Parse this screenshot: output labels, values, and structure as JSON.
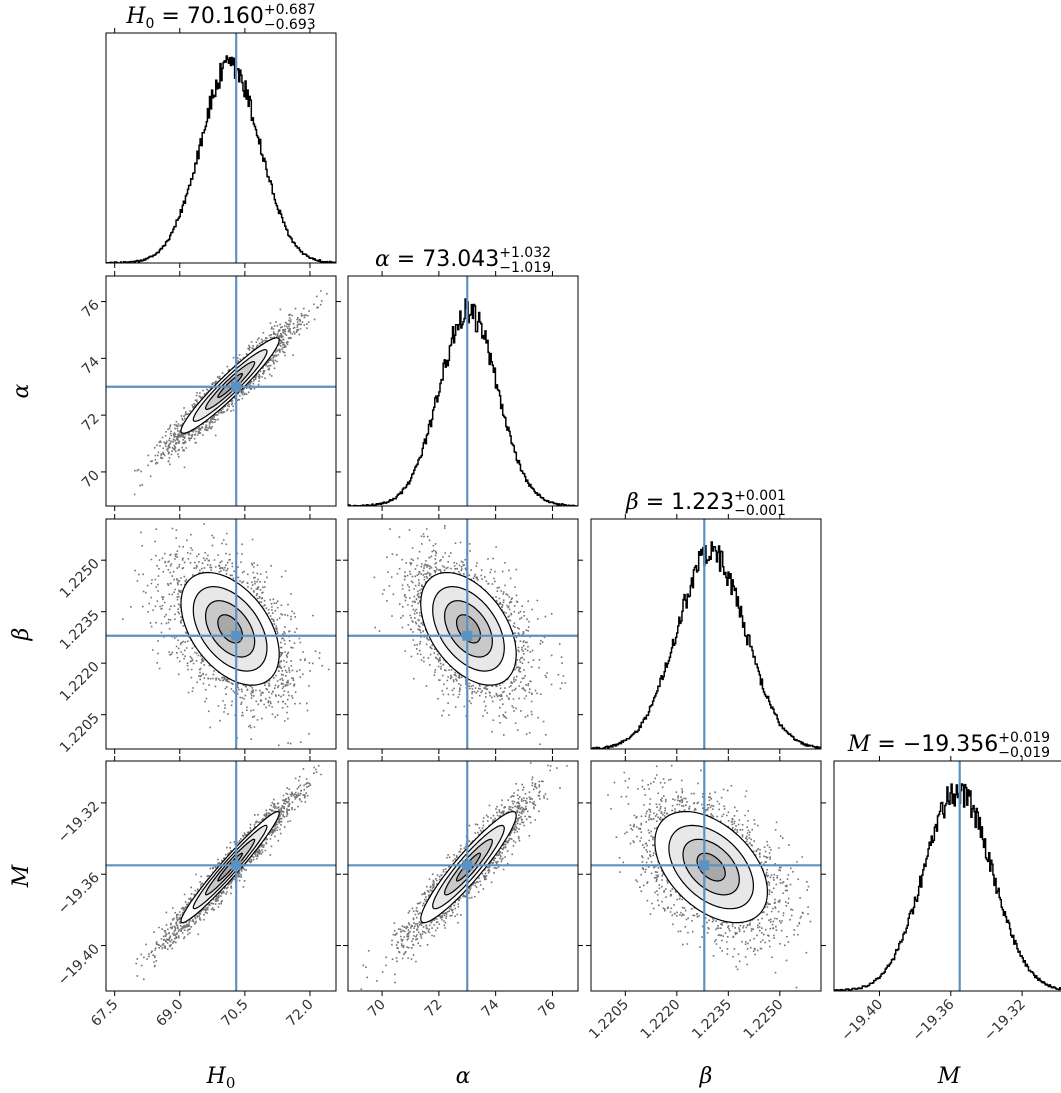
{
  "chart_data": {
    "type": "corner",
    "parameters": [
      {
        "key": "H0",
        "label": "H",
        "label_sub": "0",
        "median": 70.16,
        "err_plus": 0.687,
        "err_minus": 0.693,
        "title": {
          "lhs": "H",
          "lhs_sub": "0",
          "value": " = 70.160",
          "sup": "+0.687",
          "sub": "−0.693"
        },
        "range": [
          67.3,
          72.6
        ],
        "ticks": [
          67.5,
          69.0,
          70.5,
          72.0
        ],
        "tick_labels": [
          "67.5",
          "69.0",
          "70.5",
          "72.0"
        ]
      },
      {
        "key": "alpha",
        "label": "α",
        "label_sub": "",
        "median": 73.043,
        "err_plus": 1.032,
        "err_minus": 1.019,
        "title": {
          "lhs": "α",
          "lhs_sub": "",
          "value": " = 73.043",
          "sup": "+1.032",
          "sub": "−1.019"
        },
        "range": [
          68.8,
          76.9
        ],
        "ticks": [
          70,
          72,
          74,
          76
        ],
        "tick_labels": [
          "70",
          "72",
          "74",
          "76"
        ]
      },
      {
        "key": "beta",
        "label": "β",
        "label_sub": "",
        "median": 1.223,
        "err_plus": 0.001,
        "err_minus": 0.001,
        "title": {
          "lhs": "β",
          "lhs_sub": "",
          "value": " = 1.223",
          "sup": "+0.001",
          "sub": "−0.001"
        },
        "range": [
          1.2195,
          1.2262
        ],
        "ticks": [
          1.2205,
          1.222,
          1.2235,
          1.225
        ],
        "tick_labels": [
          "1.2205",
          "1.2220",
          "1.2235",
          "1.2250"
        ]
      },
      {
        "key": "M",
        "label": "M",
        "label_sub": "",
        "median": -19.356,
        "err_plus": 0.019,
        "err_minus": 0.019,
        "title": {
          "lhs": "M",
          "lhs_sub": "",
          "value": " = −19.356",
          "sup": "+0.019",
          "sub": "−0.019"
        },
        "range": [
          -19.4255,
          -19.2965
        ],
        "ticks": [
          -19.4,
          -19.36,
          -19.32
        ],
        "tick_labels": [
          "−19.40",
          "−19.36",
          "−19.32"
        ]
      }
    ],
    "truth_values": [
      70.3,
      73.0,
      1.2228,
      -19.355
    ],
    "correlations": [
      [
        1.0,
        0.95,
        -0.45,
        0.97
      ],
      [
        0.95,
        1.0,
        -0.45,
        0.93
      ],
      [
        -0.45,
        -0.45,
        1.0,
        -0.45
      ],
      [
        0.97,
        0.93,
        -0.45,
        1.0
      ]
    ],
    "sigma": [
      0.69,
      1.025,
      0.001,
      0.019
    ],
    "marker_color": "#5b92c2",
    "grid": false
  }
}
